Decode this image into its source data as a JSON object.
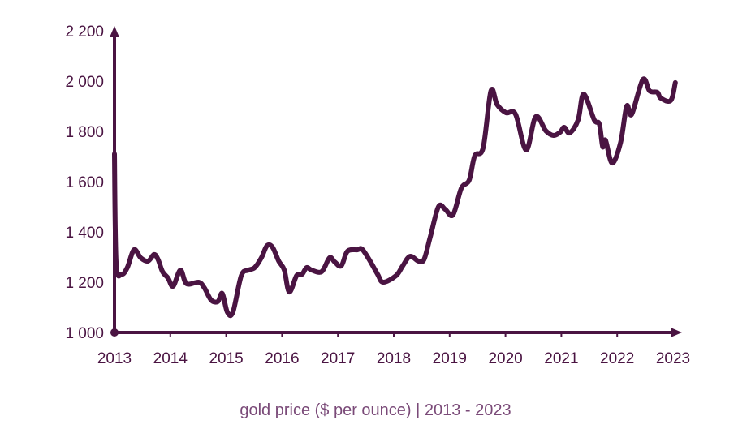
{
  "chart_data": {
    "type": "line",
    "title": "",
    "caption": "gold price ($ per ounce) | 2013 - 2023",
    "xlabel": "",
    "ylabel": "",
    "xlim": [
      2013,
      2023
    ],
    "ylim": [
      1000,
      2200
    ],
    "x_ticks": [
      "2013",
      "2014",
      "2015",
      "2016",
      "2017",
      "2018",
      "2019",
      "2020",
      "2021",
      "2022",
      "2023"
    ],
    "y_ticks": [
      "1 000",
      "1 200",
      "1 400",
      "1 600",
      "1 800",
      "2 000",
      "2 200"
    ],
    "grid": false,
    "line_color": "#4a1442",
    "series": [
      {
        "x": [
          2013.0,
          2013.03,
          2013.13,
          2013.23,
          2013.35,
          2013.47,
          2013.6,
          2013.71,
          2013.78,
          2013.86,
          2013.96,
          2014.05,
          2014.18,
          2014.29,
          2014.51,
          2014.61,
          2014.73,
          2014.85,
          2014.93,
          2015.02,
          2015.12,
          2015.27,
          2015.4,
          2015.51,
          2015.63,
          2015.73,
          2015.83,
          2015.94,
          2016.04,
          2016.13,
          2016.26,
          2016.36,
          2016.44,
          2016.53,
          2016.71,
          2016.85,
          2016.94,
          2017.06,
          2017.17,
          2017.35,
          2017.43,
          2017.56,
          2017.71,
          2017.81,
          2018.04,
          2018.16,
          2018.29,
          2018.44,
          2018.54,
          2018.65,
          2018.8,
          2018.92,
          2019.06,
          2019.21,
          2019.35,
          2019.45,
          2019.6,
          2019.74,
          2019.85,
          2020.01,
          2020.18,
          2020.37,
          2020.54,
          2020.72,
          2020.86,
          2020.98,
          2021.05,
          2021.15,
          2021.3,
          2021.4,
          2021.59,
          2021.68,
          2021.74,
          2021.79,
          2021.91,
          2022.06,
          2022.17,
          2022.26,
          2022.46,
          2022.58,
          2022.72,
          2022.78,
          2022.96,
          2023.04
        ],
        "values": [
          1710,
          1275,
          1232,
          1258,
          1329,
          1297,
          1284,
          1310,
          1290,
          1242,
          1216,
          1184,
          1248,
          1194,
          1200,
          1177,
          1129,
          1123,
          1155,
          1081,
          1081,
          1226,
          1248,
          1258,
          1297,
          1345,
          1339,
          1284,
          1248,
          1161,
          1226,
          1232,
          1258,
          1248,
          1242,
          1297,
          1281,
          1265,
          1323,
          1329,
          1332,
          1290,
          1232,
          1200,
          1226,
          1265,
          1303,
          1284,
          1290,
          1377,
          1500,
          1490,
          1468,
          1574,
          1606,
          1703,
          1735,
          1961,
          1906,
          1874,
          1868,
          1726,
          1858,
          1803,
          1784,
          1797,
          1816,
          1794,
          1845,
          1948,
          1845,
          1829,
          1739,
          1765,
          1674,
          1755,
          1900,
          1868,
          2006,
          1961,
          1955,
          1932,
          1923,
          1994
        ]
      }
    ]
  }
}
